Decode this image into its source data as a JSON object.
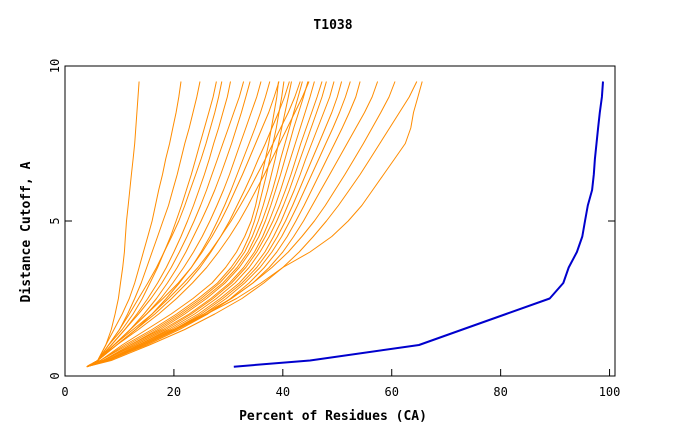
{
  "chart_data": {
    "type": "line",
    "title": "T1038",
    "xlabel": "Percent of Residues (CA)",
    "ylabel": "Distance Cutoff, A",
    "xlim": [
      0,
      101
    ],
    "ylim": [
      0,
      10
    ],
    "x_ticks": [
      0,
      20,
      40,
      60,
      80,
      100
    ],
    "y_ticks": [
      0,
      5,
      10
    ],
    "y_ticks_mirrored_right": true,
    "grid": false,
    "legend": "none",
    "colors": {
      "background_models": "#ff8c00",
      "highlight_model": "#0000cd",
      "axes": "#000000"
    },
    "y_levels": [
      0.3,
      0.5,
      1.0,
      1.5,
      2.0,
      2.5,
      3.0,
      3.5,
      4.0,
      4.5,
      5.0,
      5.5,
      6.0,
      6.5,
      7.0,
      7.5,
      8.0,
      8.5,
      9.0,
      9.5
    ],
    "series": [
      {
        "role": "highlight",
        "x": [
          31,
          45,
          65,
          73,
          81,
          89,
          91.5,
          92.5,
          94,
          95,
          95.5,
          96,
          96.8,
          97.1,
          97.3,
          97.6,
          97.9,
          98.2,
          98.6,
          98.8
        ]
      },
      {
        "role": "background",
        "x": [
          4,
          6,
          7.5,
          8.5,
          9.2,
          9.8,
          10.2,
          10.6,
          10.9,
          11.1,
          11.3,
          11.6,
          11.9,
          12.2,
          12.5,
          12.8,
          13.0,
          13.2,
          13.4,
          13.6
        ]
      },
      {
        "role": "background",
        "x": [
          4,
          6,
          7.5,
          9,
          10.5,
          11.8,
          12.8,
          13.6,
          14.4,
          15.2,
          16.0,
          16.6,
          17.2,
          17.9,
          18.5,
          19.2,
          19.8,
          20.4,
          20.9,
          21.3
        ]
      },
      {
        "role": "background",
        "x": [
          4,
          6,
          8,
          10,
          11.5,
          12.8,
          14.0,
          15.0,
          16.0,
          17.0,
          18.0,
          19.0,
          19.8,
          20.6,
          21.3,
          22.0,
          22.8,
          23.5,
          24.2,
          24.8
        ]
      },
      {
        "role": "background",
        "x": [
          4,
          6,
          8,
          10.5,
          12.5,
          14.2,
          15.6,
          17.0,
          18.2,
          19.4,
          20.4,
          21.4,
          22.3,
          23.2,
          24.0,
          24.8,
          25.6,
          26.4,
          27.2,
          27.8
        ]
      },
      {
        "role": "background",
        "x": [
          4,
          6,
          8,
          10,
          11.8,
          13.5,
          15.2,
          16.8,
          18.2,
          19.6,
          20.9,
          22.0,
          23.0,
          24.0,
          25.0,
          25.9,
          26.7,
          27.5,
          28.2,
          28.8
        ]
      },
      {
        "role": "background",
        "x": [
          4,
          6,
          8.5,
          11,
          13.2,
          15.2,
          17.0,
          18.6,
          20.0,
          21.3,
          22.5,
          23.6,
          24.6,
          25.6,
          26.5,
          27.3,
          28.2,
          29.0,
          29.8,
          30.4
        ]
      },
      {
        "role": "background",
        "x": [
          4,
          6,
          8.5,
          11,
          13.5,
          15.8,
          17.8,
          19.5,
          21.0,
          22.4,
          23.7,
          24.9,
          26.0,
          27.0,
          28.0,
          29.0,
          30.0,
          31.0,
          32.0,
          32.8
        ]
      },
      {
        "role": "background",
        "x": [
          4,
          6,
          9,
          12,
          14.5,
          16.8,
          18.8,
          20.6,
          22.2,
          23.6,
          25.0,
          26.3,
          27.5,
          28.6,
          29.6,
          30.6,
          31.5,
          32.4,
          33.2,
          34.0
        ]
      },
      {
        "role": "background",
        "x": [
          4,
          6,
          9,
          12,
          15.0,
          17.6,
          19.8,
          21.8,
          23.6,
          25.2,
          26.6,
          27.9,
          29.1,
          30.2,
          31.2,
          32.2,
          33.2,
          34.2,
          35.2,
          36.0
        ]
      },
      {
        "role": "background",
        "x": [
          4,
          6,
          9.5,
          13,
          16.0,
          18.6,
          21.0,
          23.2,
          25.0,
          26.6,
          28.0,
          29.3,
          30.5,
          31.6,
          32.7,
          33.8,
          34.9,
          35.9,
          36.8,
          37.6
        ]
      },
      {
        "role": "background",
        "x": [
          4,
          6,
          9,
          12,
          15.0,
          18.0,
          20.8,
          23.2,
          25.2,
          27.0,
          28.6,
          30.0,
          31.3,
          32.6,
          33.8,
          35.0,
          36.2,
          37.4,
          38.4,
          39.3
        ]
      },
      {
        "role": "background",
        "x": [
          4,
          6,
          9.5,
          13,
          16.5,
          19.6,
          22.4,
          24.8,
          26.8,
          28.6,
          30.2,
          31.6,
          33.0,
          34.3,
          35.5,
          36.8,
          38.0,
          39.2,
          40.3,
          41.2
        ]
      },
      {
        "role": "background",
        "x": [
          4,
          6,
          9,
          12.5,
          16.0,
          19.0,
          21.8,
          24.4,
          26.6,
          28.6,
          30.5,
          32.2,
          33.8,
          35.3,
          36.8,
          38.2,
          39.6,
          41.0,
          42.2,
          43.2
        ]
      },
      {
        "role": "background",
        "x": [
          4,
          6,
          9.5,
          13.5,
          17.2,
          20.5,
          23.4,
          26.0,
          28.2,
          30.2,
          32.0,
          33.6,
          35.1,
          36.6,
          38.0,
          39.4,
          40.8,
          42.2,
          43.6,
          44.8
        ]
      },
      {
        "role": "background",
        "x": [
          4,
          6.5,
          10.5,
          15,
          19.5,
          23.5,
          27.0,
          29.5,
          31.5,
          33.0,
          34.2,
          35.0,
          35.6,
          36.2,
          36.8,
          37.4,
          37.9,
          38.4,
          38.9,
          39.2
        ]
      },
      {
        "role": "background",
        "x": [
          4,
          6.5,
          11,
          16,
          20.5,
          24.5,
          28.0,
          30.5,
          32.5,
          33.8,
          34.8,
          35.6,
          36.3,
          37.0,
          37.6,
          38.2,
          38.8,
          39.3,
          39.8,
          40.2
        ]
      },
      {
        "role": "background",
        "x": [
          4,
          6.5,
          11.5,
          16.5,
          21.0,
          25.0,
          28.4,
          31.0,
          33.0,
          34.4,
          35.5,
          36.4,
          37.2,
          37.9,
          38.6,
          39.2,
          39.8,
          40.4,
          41.0,
          41.6
        ]
      },
      {
        "role": "background",
        "x": [
          4,
          7,
          12,
          17,
          21.5,
          25.5,
          29.0,
          31.6,
          33.6,
          35.0,
          36.2,
          37.2,
          38.1,
          38.9,
          39.6,
          40.4,
          41.2,
          42.0,
          42.8,
          43.6
        ]
      },
      {
        "role": "background",
        "x": [
          4,
          7,
          12,
          17.5,
          22.0,
          26.0,
          29.4,
          32.0,
          34.0,
          35.6,
          36.8,
          37.8,
          38.7,
          39.6,
          40.4,
          41.2,
          42.0,
          42.9,
          43.8,
          44.6
        ]
      },
      {
        "role": "background",
        "x": [
          4,
          7,
          12.5,
          18,
          22.8,
          26.8,
          30.2,
          32.8,
          34.8,
          36.3,
          37.5,
          38.6,
          39.6,
          40.5,
          41.4,
          42.3,
          43.2,
          44.1,
          45.0,
          45.8
        ]
      },
      {
        "role": "background",
        "x": [
          4,
          7,
          13,
          18.5,
          23.2,
          27.2,
          30.6,
          33.2,
          35.2,
          36.8,
          38.2,
          39.4,
          40.5,
          41.5,
          42.4,
          43.3,
          44.3,
          45.3,
          46.3,
          47.2
        ]
      },
      {
        "role": "background",
        "x": [
          4,
          7.5,
          13.5,
          19,
          23.8,
          27.8,
          31.2,
          33.8,
          35.8,
          37.5,
          38.9,
          40.1,
          41.2,
          42.2,
          43.2,
          44.2,
          45.2,
          46.2,
          47.2,
          48.0
        ]
      },
      {
        "role": "background",
        "x": [
          4,
          7.5,
          13.5,
          19.5,
          24.5,
          28.5,
          32.0,
          34.6,
          36.7,
          38.3,
          39.7,
          40.9,
          42.1,
          43.2,
          44.2,
          45.3,
          46.4,
          47.5,
          48.6,
          49.4
        ]
      },
      {
        "role": "background",
        "x": [
          4,
          7.5,
          14,
          20,
          25.0,
          29.0,
          32.5,
          35.2,
          37.3,
          39.0,
          40.5,
          41.8,
          43.0,
          44.2,
          45.4,
          46.6,
          47.8,
          49.0,
          50.0,
          50.8
        ]
      },
      {
        "role": "background",
        "x": [
          4,
          8,
          14.5,
          20.5,
          25.5,
          29.6,
          33.0,
          35.8,
          38.0,
          39.8,
          41.3,
          42.7,
          44.0,
          45.3,
          46.6,
          47.9,
          49.2,
          50.4,
          51.5,
          52.4
        ]
      },
      {
        "role": "background",
        "x": [
          4,
          8,
          15,
          21,
          26.2,
          30.4,
          33.8,
          36.6,
          38.9,
          40.8,
          42.4,
          43.9,
          45.3,
          46.7,
          48.1,
          49.5,
          50.9,
          52.2,
          53.4,
          54.2
        ]
      },
      {
        "role": "background",
        "x": [
          4,
          8,
          14.5,
          20.5,
          26.0,
          30.6,
          34.5,
          37.5,
          40.0,
          42.0,
          43.8,
          45.4,
          47.0,
          48.6,
          50.2,
          51.8,
          53.4,
          55.0,
          56.4,
          57.4
        ]
      },
      {
        "role": "background",
        "x": [
          4,
          8,
          14,
          20,
          25.5,
          30.5,
          34.5,
          38.0,
          41.0,
          43.5,
          45.8,
          47.8,
          49.6,
          51.4,
          53.1,
          54.8,
          56.4,
          58.0,
          59.5,
          60.6
        ]
      },
      {
        "role": "background",
        "x": [
          4,
          8.5,
          15.5,
          22,
          27.5,
          32.5,
          36.5,
          40.0,
          43.0,
          45.6,
          48.0,
          50.2,
          52.2,
          54.2,
          56.0,
          57.8,
          59.6,
          61.4,
          63.2,
          64.6
        ]
      },
      {
        "role": "background",
        "x": [
          4,
          8,
          14,
          20,
          26,
          31.5,
          36,
          40.0,
          45.0,
          49.0,
          52.0,
          54.5,
          56.5,
          58.5,
          60.5,
          62.5,
          63.5,
          64.0,
          64.8,
          65.6
        ]
      }
    ]
  }
}
